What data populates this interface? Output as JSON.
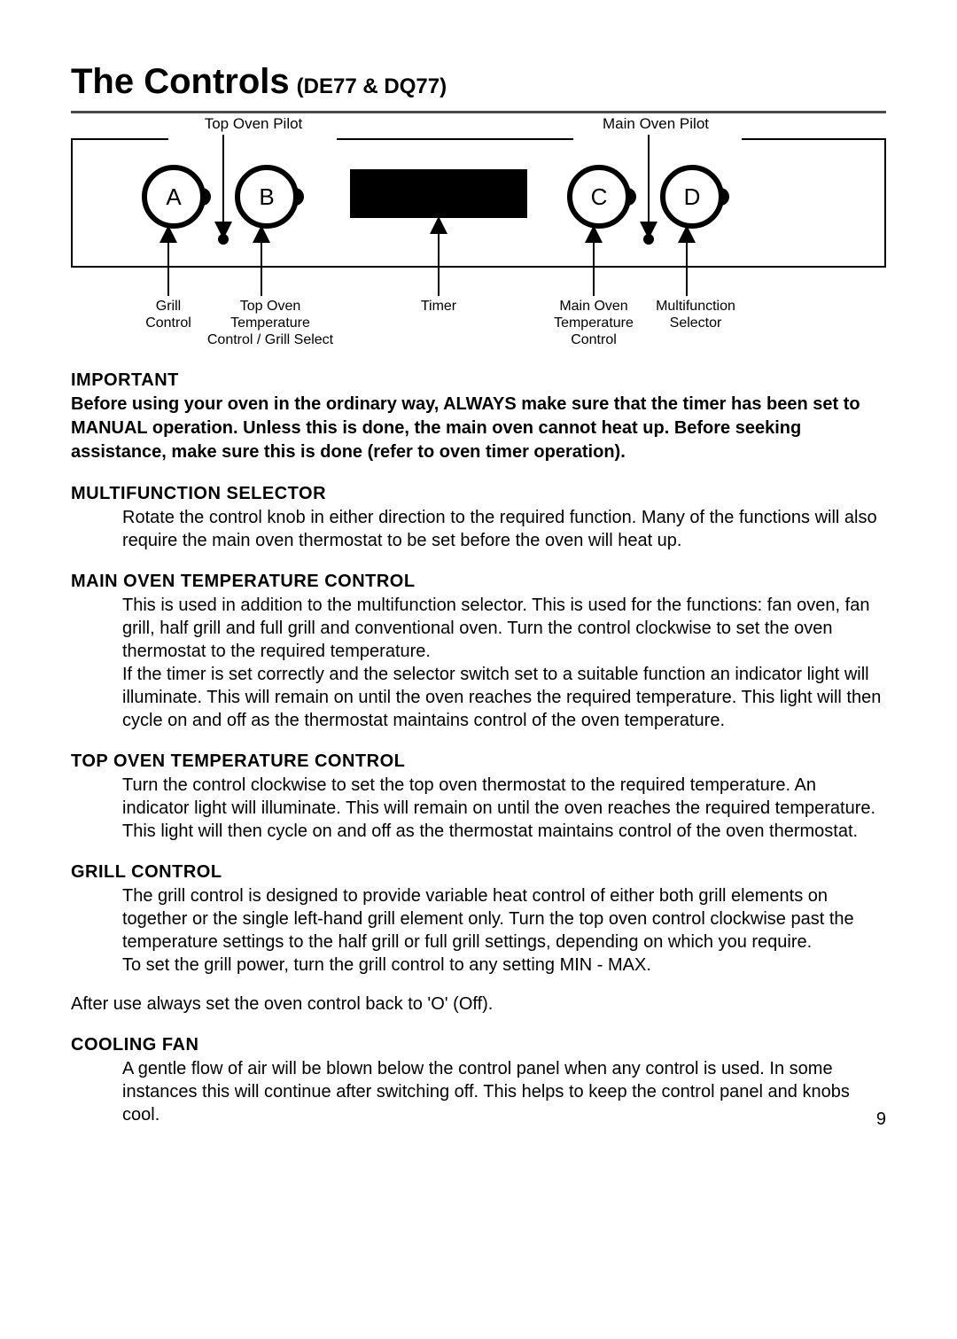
{
  "title": {
    "main": "The Controls",
    "paren": "(DE77 & DQ77)"
  },
  "diagram": {
    "top_labels": {
      "top_oven_pilot": "Top Oven Pilot",
      "main_oven_pilot": "Main Oven Pilot"
    },
    "knobs": {
      "A": "A",
      "B": "B",
      "C": "C",
      "D": "D"
    },
    "bottom_labels": {
      "grill_control": "Grill\nControl",
      "top_oven_temp": "Top Oven\nTemperature\nControl / Grill Select",
      "timer": "Timer",
      "main_oven_temp": "Main Oven\nTemperature\nControl",
      "multifunction": "Multifunction\nSelector"
    },
    "colors": {
      "line": "#000000",
      "fill_black": "#000000",
      "background": "#ffffff"
    }
  },
  "sections": {
    "important": {
      "heading": "IMPORTANT",
      "body": "Before using your oven in the ordinary way, ALWAYS make sure that the timer has been set to MANUAL operation. Unless this is done, the main oven cannot heat up. Before seeking assistance, make sure this is done (refer to oven timer operation)."
    },
    "multifunction": {
      "heading": "MULTIFUNCTION SELECTOR",
      "body": "Rotate the control knob in either direction to the required function. Many of the functions will also require the main oven thermostat to be set before the oven will heat up."
    },
    "main_temp": {
      "heading": "MAIN OVEN TEMPERATURE CONTROL",
      "p1": "This is used in addition to the multifunction selector. This is used for the functions: fan oven, fan grill, half grill and full grill and conventional oven. Turn the control clockwise to set the oven thermostat to the required temperature.",
      "p2": "If the timer is set correctly and the selector switch set to a suitable function an indicator light will illuminate. This will remain on until the oven reaches the required temperature. This light will then cycle on and off as the thermostat maintains control of the oven temperature."
    },
    "top_temp": {
      "heading": "TOP OVEN TEMPERATURE CONTROL",
      "body": "Turn the control clockwise to set the top oven thermostat to the required temperature. An indicator light will illuminate. This will remain on until the oven reaches the required temperature. This light will then cycle on and off as the thermostat maintains control of the oven thermostat."
    },
    "grill": {
      "heading": "GRILL CONTROL",
      "p1": "The grill control is designed to provide variable heat control of either both grill elements on together or the single left-hand grill element only. Turn the top oven control clockwise past the temperature settings to the half grill or full grill settings, depending on which you require.",
      "p2": "To set the grill power, turn the grill control to any setting MIN - MAX."
    },
    "after_use": "After use always set the oven control back to 'O' (Off).",
    "cooling": {
      "heading": "COOLING FAN",
      "body": "A gentle flow of air will be blown below the control panel when any control is used. In some instances this will continue after switching off. This helps to keep the control panel and knobs cool."
    }
  },
  "page_number": "9"
}
